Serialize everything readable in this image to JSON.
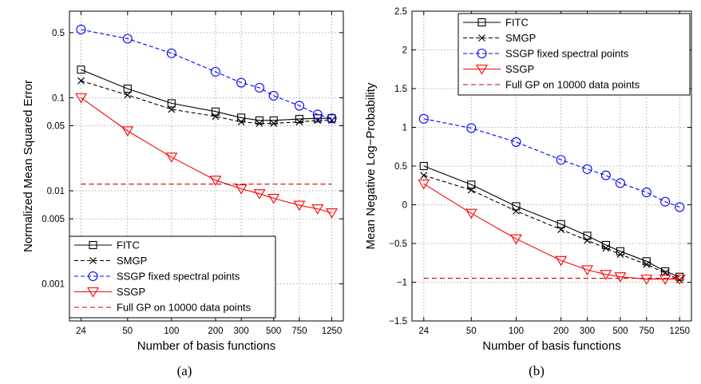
{
  "x_ticks": [
    24,
    50,
    100,
    200,
    300,
    500,
    750,
    1250
  ],
  "x_tick_labels": [
    "24",
    "50",
    "100",
    "200",
    "300",
    "500",
    "750",
    "1250"
  ],
  "x_points": [
    24,
    50,
    100,
    200,
    300,
    400,
    500,
    750,
    1000,
    1250
  ],
  "colors": {
    "black": "#000000",
    "blue": "#0000ff",
    "red": "#ff0000",
    "darkred": "#cc0000",
    "grid": "#bbbbbb"
  },
  "chart_data": [
    {
      "type": "line",
      "panel_label": "(a)",
      "xlabel": "Number of basis functions",
      "ylabel": "Normalized Mean Squared Error",
      "xscale": "log",
      "yscale": "log",
      "xlim": [
        20,
        1500
      ],
      "ylim": [
        0.0004,
        0.85
      ],
      "yticks": [
        0.001,
        0.005,
        0.01,
        0.05,
        0.1,
        0.5
      ],
      "ytick_labels": [
        "0.001",
        "0.005",
        "0.01",
        "0.05",
        "0.1",
        "0.5"
      ],
      "grid": true,
      "legend_position": "bottom",
      "series": [
        {
          "name": "FITC",
          "style": "solid",
          "marker": "square",
          "color": "#000000",
          "x": [
            24,
            50,
            100,
            200,
            300,
            400,
            500,
            750,
            1000,
            1250
          ],
          "y": [
            0.2,
            0.125,
            0.087,
            0.071,
            0.061,
            0.057,
            0.057,
            0.059,
            0.06,
            0.06
          ]
        },
        {
          "name": "SMGP",
          "style": "dashed",
          "marker": "x",
          "color": "#000000",
          "x": [
            24,
            50,
            100,
            200,
            300,
            400,
            500,
            750,
            1000,
            1250
          ],
          "y": [
            0.152,
            0.107,
            0.075,
            0.063,
            0.055,
            0.053,
            0.053,
            0.055,
            0.057,
            0.057
          ]
        },
        {
          "name": "SSGP fixed spectral points",
          "style": "dashed",
          "marker": "circle",
          "color": "#0000ff",
          "x": [
            24,
            50,
            100,
            200,
            300,
            400,
            500,
            750,
            1000,
            1250
          ],
          "y": [
            0.54,
            0.43,
            0.3,
            0.19,
            0.145,
            0.128,
            0.105,
            0.082,
            0.066,
            0.06
          ]
        },
        {
          "name": "SSGP",
          "style": "solid",
          "marker": "triangle-down",
          "color": "#ff0000",
          "x": [
            24,
            50,
            100,
            200,
            300,
            400,
            500,
            750,
            1000,
            1250
          ],
          "y": [
            0.1,
            0.044,
            0.023,
            0.013,
            0.0105,
            0.0093,
            0.0083,
            0.007,
            0.0064,
            0.0058
          ]
        },
        {
          "name": "Full GP on 10000 data points",
          "style": "dashed",
          "marker": "none",
          "color": "#cc0000",
          "x": [
            24,
            1250
          ],
          "y": [
            0.0118,
            0.0118
          ]
        }
      ]
    },
    {
      "type": "line",
      "panel_label": "(b)",
      "xlabel": "Number of basis functions",
      "ylabel": "Mean Negative Log−Probability",
      "xscale": "log",
      "yscale": "linear",
      "xlim": [
        20,
        1500
      ],
      "ylim": [
        -1.5,
        2.5
      ],
      "yticks": [
        -1.5,
        -1,
        -0.5,
        0,
        0.5,
        1,
        1.5,
        2,
        2.5
      ],
      "ytick_labels": [
        "−1.5",
        "−1",
        "−0.5",
        "0",
        "0.5",
        "1",
        "1.5",
        "2",
        "2.5"
      ],
      "grid": true,
      "legend_position": "top-right",
      "series": [
        {
          "name": "FITC",
          "style": "solid",
          "marker": "square",
          "color": "#000000",
          "x": [
            24,
            50,
            100,
            200,
            300,
            400,
            500,
            750,
            1000,
            1250
          ],
          "y": [
            0.5,
            0.26,
            -0.02,
            -0.25,
            -0.4,
            -0.52,
            -0.6,
            -0.73,
            -0.86,
            -0.93
          ]
        },
        {
          "name": "SMGP",
          "style": "dashed",
          "marker": "x",
          "color": "#000000",
          "x": [
            24,
            50,
            100,
            200,
            300,
            400,
            500,
            750,
            1000,
            1250
          ],
          "y": [
            0.38,
            0.19,
            -0.08,
            -0.32,
            -0.46,
            -0.56,
            -0.64,
            -0.77,
            -0.88,
            -0.97
          ]
        },
        {
          "name": "SSGP fixed spectral points",
          "style": "dashed",
          "marker": "circle",
          "color": "#0000ff",
          "x": [
            24,
            50,
            100,
            200,
            300,
            400,
            500,
            750,
            1000,
            1250
          ],
          "y": [
            1.11,
            0.99,
            0.81,
            0.58,
            0.46,
            0.38,
            0.28,
            0.16,
            0.04,
            -0.03
          ]
        },
        {
          "name": "SSGP",
          "style": "solid",
          "marker": "triangle-down",
          "color": "#ff0000",
          "x": [
            24,
            50,
            100,
            200,
            300,
            400,
            500,
            750,
            1000,
            1250
          ],
          "y": [
            0.27,
            -0.11,
            -0.44,
            -0.72,
            -0.84,
            -0.9,
            -0.93,
            -0.96,
            -0.96,
            -0.96
          ]
        },
        {
          "name": "Full GP on 10000 data points",
          "style": "dashed",
          "marker": "none",
          "color": "#cc0000",
          "x": [
            24,
            1250
          ],
          "y": [
            -0.95,
            -0.95
          ]
        }
      ]
    }
  ]
}
